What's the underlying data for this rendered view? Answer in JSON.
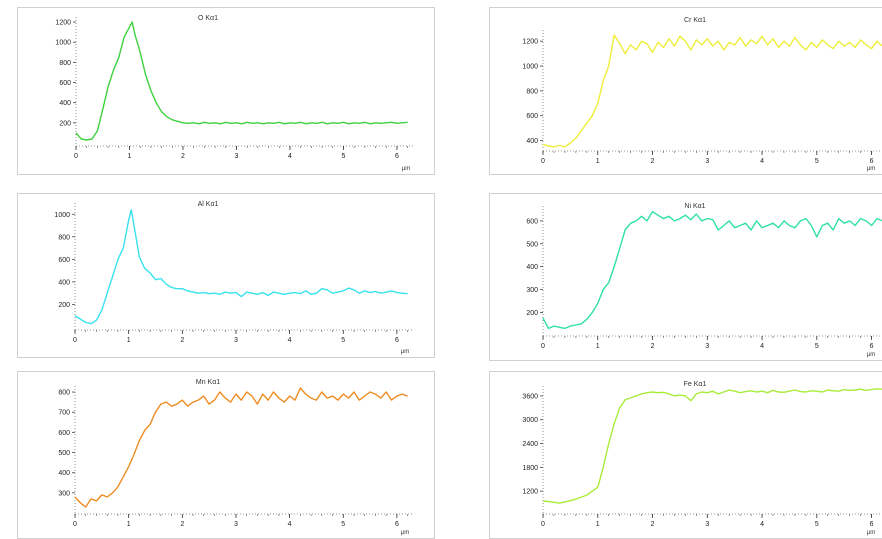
{
  "chart_data": [
    {
      "id": "o",
      "type": "line",
      "title": "O Kα1",
      "color": "#3fd13f",
      "xlabel": "μm",
      "xlim": [
        0,
        6.3
      ],
      "ylim": [
        0,
        1250
      ],
      "xticks": [
        "0",
        "1",
        "2",
        "3",
        "4",
        "5",
        "6"
      ],
      "yticks": [
        "200",
        "400",
        "600",
        "800",
        "1000",
        "1200"
      ],
      "grid": false,
      "series": [
        {
          "x": [
            0,
            0.1,
            0.2,
            0.3,
            0.4,
            0.5,
            0.6,
            0.7,
            0.8,
            0.9,
            1.0,
            1.05,
            1.1,
            1.2,
            1.3,
            1.4,
            1.5,
            1.6,
            1.7,
            1.8,
            1.9,
            2.0,
            2.1,
            2.2,
            2.3,
            2.4,
            2.5,
            2.6,
            2.7,
            2.8,
            2.9,
            3.0,
            3.1,
            3.2,
            3.3,
            3.4,
            3.5,
            3.6,
            3.7,
            3.8,
            3.9,
            4.0,
            4.1,
            4.2,
            4.3,
            4.4,
            4.5,
            4.6,
            4.7,
            4.8,
            4.9,
            5.0,
            5.1,
            5.2,
            5.3,
            5.4,
            5.5,
            5.6,
            5.7,
            5.8,
            5.9,
            6.0,
            6.1,
            6.2
          ],
          "values": [
            100,
            40,
            30,
            40,
            120,
            330,
            560,
            720,
            850,
            1050,
            1150,
            1200,
            1080,
            900,
            680,
            520,
            400,
            310,
            260,
            230,
            215,
            200,
            195,
            200,
            190,
            205,
            195,
            200,
            190,
            205,
            195,
            200,
            190,
            205,
            195,
            200,
            190,
            200,
            195,
            205,
            190,
            200,
            195,
            205,
            190,
            200,
            195,
            205,
            190,
            200,
            195,
            205,
            190,
            200,
            195,
            205,
            190,
            200,
            195,
            200,
            205,
            195,
            200,
            205
          ]
        }
      ]
    },
    {
      "id": "cr",
      "type": "line",
      "title": "Cr Kα1",
      "color": "#eeee3a",
      "xlabel": "μm",
      "xlim": [
        0,
        6.3
      ],
      "ylim": [
        340,
        1290
      ],
      "xticks": [
        "0",
        "1",
        "2",
        "3",
        "4",
        "5",
        "6"
      ],
      "yticks": [
        "400",
        "600",
        "800",
        "1000",
        "1200"
      ],
      "grid": false,
      "series": [
        {
          "x": [
            0,
            0.1,
            0.2,
            0.3,
            0.4,
            0.5,
            0.6,
            0.7,
            0.8,
            0.9,
            1.0,
            1.1,
            1.2,
            1.3,
            1.4,
            1.5,
            1.6,
            1.7,
            1.8,
            1.9,
            2.0,
            2.1,
            2.2,
            2.3,
            2.4,
            2.5,
            2.6,
            2.7,
            2.8,
            2.9,
            3.0,
            3.1,
            3.2,
            3.3,
            3.4,
            3.5,
            3.6,
            3.7,
            3.8,
            3.9,
            4.0,
            4.1,
            4.2,
            4.3,
            4.4,
            4.5,
            4.6,
            4.7,
            4.8,
            4.9,
            5.0,
            5.1,
            5.2,
            5.3,
            5.4,
            5.5,
            5.6,
            5.7,
            5.8,
            5.9,
            6.0,
            6.1,
            6.2
          ],
          "values": [
            370,
            355,
            350,
            360,
            350,
            380,
            420,
            480,
            540,
            600,
            700,
            880,
            1000,
            1250,
            1180,
            1100,
            1170,
            1130,
            1200,
            1180,
            1110,
            1190,
            1150,
            1220,
            1160,
            1240,
            1200,
            1130,
            1210,
            1170,
            1220,
            1160,
            1200,
            1130,
            1190,
            1170,
            1230,
            1160,
            1210,
            1180,
            1240,
            1170,
            1220,
            1150,
            1200,
            1160,
            1230,
            1170,
            1130,
            1190,
            1150,
            1210,
            1170,
            1140,
            1200,
            1160,
            1190,
            1150,
            1210,
            1170,
            1140,
            1200,
            1160
          ]
        }
      ]
    },
    {
      "id": "al",
      "type": "line",
      "title": "Al Kα1",
      "color": "#38e2ee",
      "xlabel": "μm",
      "xlim": [
        0,
        6.3
      ],
      "ylim": [
        0,
        1100
      ],
      "xticks": [
        "0",
        "1",
        "2",
        "3",
        "4",
        "5",
        "6"
      ],
      "yticks": [
        "200",
        "400",
        "600",
        "800",
        "1000"
      ],
      "grid": false,
      "series": [
        {
          "x": [
            0,
            0.1,
            0.2,
            0.3,
            0.4,
            0.5,
            0.6,
            0.7,
            0.8,
            0.9,
            1.0,
            1.05,
            1.1,
            1.2,
            1.3,
            1.4,
            1.5,
            1.6,
            1.7,
            1.8,
            1.9,
            2.0,
            2.1,
            2.2,
            2.3,
            2.4,
            2.5,
            2.6,
            2.7,
            2.8,
            2.9,
            3.0,
            3.1,
            3.2,
            3.3,
            3.4,
            3.5,
            3.6,
            3.7,
            3.8,
            3.9,
            4.0,
            4.1,
            4.2,
            4.3,
            4.4,
            4.5,
            4.6,
            4.7,
            4.8,
            4.9,
            5.0,
            5.1,
            5.2,
            5.3,
            5.4,
            5.5,
            5.6,
            5.7,
            5.8,
            5.9,
            6.0,
            6.1,
            6.2
          ],
          "values": [
            100,
            70,
            40,
            30,
            60,
            150,
            300,
            450,
            600,
            700,
            950,
            1040,
            900,
            620,
            520,
            480,
            420,
            430,
            380,
            350,
            340,
            340,
            320,
            310,
            300,
            305,
            295,
            300,
            290,
            310,
            300,
            305,
            270,
            310,
            300,
            290,
            305,
            280,
            310,
            300,
            290,
            300,
            305,
            295,
            320,
            290,
            300,
            340,
            330,
            300,
            310,
            320,
            345,
            330,
            300,
            320,
            305,
            315,
            300,
            310,
            320,
            305,
            300,
            295
          ]
        }
      ]
    },
    {
      "id": "ni",
      "type": "line",
      "title": "Ni Kα1",
      "color": "#2ee0a8",
      "xlabel": "μm",
      "xlim": [
        0,
        6.3
      ],
      "ylim": [
        110,
        665
      ],
      "xticks": [
        "0",
        "1",
        "2",
        "3",
        "4",
        "5",
        "6"
      ],
      "yticks": [
        "200",
        "300",
        "400",
        "500",
        "600"
      ],
      "grid": false,
      "series": [
        {
          "x": [
            0,
            0.1,
            0.2,
            0.3,
            0.4,
            0.5,
            0.6,
            0.7,
            0.8,
            0.9,
            1.0,
            1.1,
            1.2,
            1.3,
            1.4,
            1.5,
            1.6,
            1.7,
            1.8,
            1.9,
            2.0,
            2.1,
            2.2,
            2.3,
            2.4,
            2.5,
            2.6,
            2.7,
            2.8,
            2.9,
            3.0,
            3.1,
            3.2,
            3.3,
            3.4,
            3.5,
            3.6,
            3.7,
            3.8,
            3.9,
            4.0,
            4.1,
            4.2,
            4.3,
            4.4,
            4.5,
            4.6,
            4.7,
            4.8,
            4.9,
            5.0,
            5.1,
            5.2,
            5.3,
            5.4,
            5.5,
            5.6,
            5.7,
            5.8,
            5.9,
            6.0,
            6.1,
            6.2
          ],
          "values": [
            175,
            130,
            140,
            135,
            130,
            140,
            145,
            150,
            170,
            200,
            240,
            300,
            330,
            400,
            480,
            560,
            590,
            600,
            620,
            600,
            640,
            625,
            610,
            620,
            600,
            610,
            625,
            605,
            630,
            600,
            610,
            605,
            560,
            580,
            600,
            570,
            580,
            590,
            560,
            600,
            570,
            580,
            590,
            570,
            600,
            580,
            570,
            600,
            610,
            580,
            530,
            580,
            590,
            560,
            610,
            590,
            600,
            580,
            610,
            600,
            580,
            610,
            600
          ]
        }
      ]
    },
    {
      "id": "mn",
      "type": "line",
      "title": "Mn Kα1",
      "color": "#ee8c22",
      "xlabel": "μm",
      "xlim": [
        0,
        6.3
      ],
      "ylim": [
        210,
        830
      ],
      "xticks": [
        "0",
        "1",
        "2",
        "3",
        "4",
        "5",
        "6"
      ],
      "yticks": [
        "300",
        "400",
        "500",
        "600",
        "700",
        "800"
      ],
      "grid": false,
      "series": [
        {
          "x": [
            0,
            0.1,
            0.2,
            0.3,
            0.4,
            0.5,
            0.6,
            0.7,
            0.8,
            0.9,
            1.0,
            1.1,
            1.2,
            1.3,
            1.4,
            1.5,
            1.6,
            1.7,
            1.8,
            1.9,
            2.0,
            2.1,
            2.2,
            2.3,
            2.4,
            2.5,
            2.6,
            2.7,
            2.8,
            2.9,
            3.0,
            3.1,
            3.2,
            3.3,
            3.4,
            3.5,
            3.6,
            3.7,
            3.8,
            3.9,
            4.0,
            4.1,
            4.2,
            4.3,
            4.4,
            4.5,
            4.6,
            4.7,
            4.8,
            4.9,
            5.0,
            5.1,
            5.2,
            5.3,
            5.4,
            5.5,
            5.6,
            5.7,
            5.8,
            5.9,
            6.0,
            6.1,
            6.2
          ],
          "values": [
            280,
            250,
            230,
            270,
            260,
            290,
            280,
            300,
            330,
            380,
            430,
            490,
            560,
            610,
            640,
            700,
            740,
            750,
            730,
            740,
            760,
            730,
            750,
            760,
            780,
            740,
            760,
            800,
            770,
            750,
            790,
            760,
            800,
            780,
            740,
            790,
            760,
            800,
            770,
            750,
            780,
            760,
            820,
            790,
            770,
            760,
            800,
            770,
            780,
            760,
            790,
            770,
            800,
            760,
            780,
            800,
            790,
            770,
            800,
            760,
            780,
            790,
            780
          ]
        }
      ]
    },
    {
      "id": "fe",
      "type": "line",
      "title": "Fe Kα1",
      "color": "#a8ec3a",
      "xlabel": "μm",
      "xlim": [
        0,
        6.3
      ],
      "ylim": [
        700,
        3850
      ],
      "xticks": [
        "0",
        "1",
        "2",
        "3",
        "4",
        "5",
        "6"
      ],
      "yticks": [
        "1200",
        "1800",
        "2400",
        "3000",
        "3600"
      ],
      "grid": false,
      "series": [
        {
          "x": [
            0,
            0.1,
            0.2,
            0.3,
            0.4,
            0.5,
            0.6,
            0.7,
            0.8,
            0.9,
            1.0,
            1.1,
            1.2,
            1.3,
            1.4,
            1.5,
            1.6,
            1.7,
            1.8,
            1.9,
            2.0,
            2.1,
            2.2,
            2.3,
            2.4,
            2.5,
            2.6,
            2.7,
            2.8,
            2.9,
            3.0,
            3.1,
            3.2,
            3.3,
            3.4,
            3.5,
            3.6,
            3.7,
            3.8,
            3.9,
            4.0,
            4.1,
            4.2,
            4.3,
            4.4,
            4.5,
            4.6,
            4.7,
            4.8,
            4.9,
            5.0,
            5.1,
            5.2,
            5.3,
            5.4,
            5.5,
            5.6,
            5.7,
            5.8,
            5.9,
            6.0,
            6.1,
            6.2
          ],
          "values": [
            950,
            940,
            920,
            900,
            930,
            960,
            1000,
            1050,
            1100,
            1200,
            1300,
            1800,
            2400,
            2900,
            3300,
            3500,
            3550,
            3600,
            3650,
            3680,
            3700,
            3680,
            3690,
            3650,
            3600,
            3620,
            3600,
            3480,
            3650,
            3700,
            3680,
            3720,
            3650,
            3700,
            3750,
            3720,
            3680,
            3710,
            3730,
            3700,
            3720,
            3680,
            3740,
            3700,
            3690,
            3720,
            3750,
            3710,
            3700,
            3730,
            3720,
            3700,
            3750,
            3730,
            3720,
            3760,
            3740,
            3750,
            3770,
            3740,
            3760,
            3780,
            3770
          ]
        }
      ]
    }
  ]
}
